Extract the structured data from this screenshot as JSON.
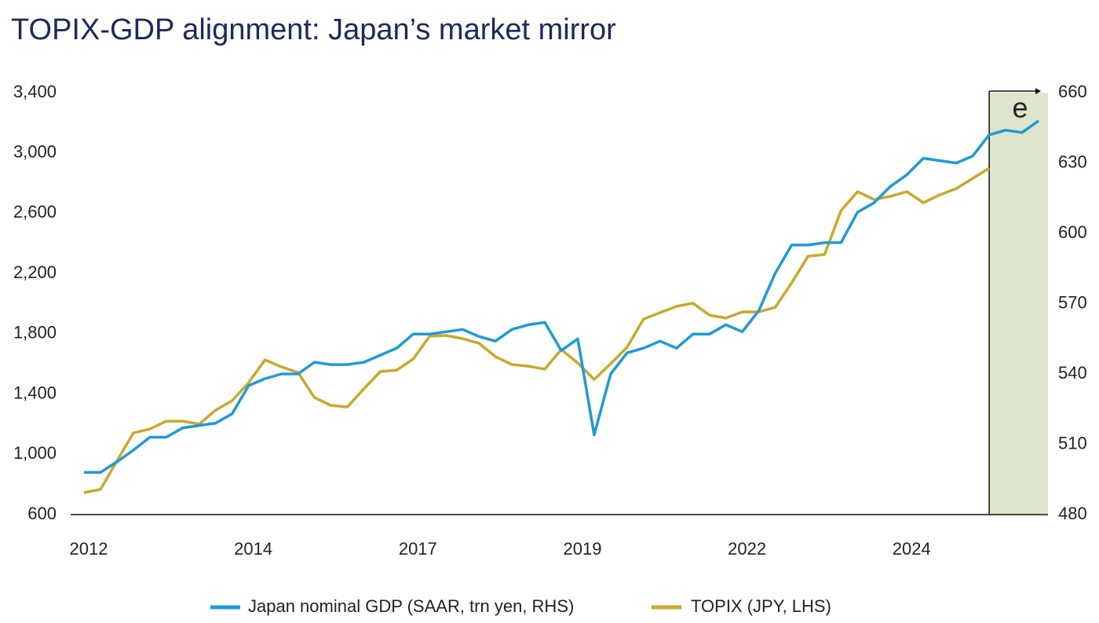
{
  "chart_data": {
    "type": "line",
    "title": "TOPIX-GDP alignment: Japan’s market mirror",
    "categories": [
      "2012",
      null,
      null,
      null,
      null,
      null,
      null,
      null,
      null,
      null,
      "2014",
      null,
      null,
      null,
      null,
      null,
      null,
      null,
      null,
      null,
      "2017",
      null,
      null,
      null,
      null,
      null,
      null,
      null,
      null,
      null,
      "2019",
      null,
      null,
      null,
      null,
      null,
      null,
      null,
      null,
      null,
      "2022",
      null,
      null,
      null,
      null,
      null,
      null,
      null,
      null,
      null,
      "2024",
      null,
      null,
      null,
      null,
      null,
      null,
      null,
      null
    ],
    "series": [
      {
        "name": "Japan nominal GDP (SAAR, trn yen, RHS)",
        "color": "#1f9ad6",
        "axis": "y2",
        "values": [
          498,
          498,
          502.5,
          507.5,
          513,
          513,
          517,
          518,
          519,
          523,
          535,
          538,
          540,
          540,
          545,
          544,
          544,
          545,
          548,
          551,
          557,
          557,
          558,
          559,
          556,
          554,
          559,
          561,
          562,
          550,
          555,
          514,
          540,
          549,
          551,
          554,
          551,
          557,
          557,
          561,
          558,
          567,
          583,
          595,
          595,
          596,
          596,
          609,
          613,
          620,
          625,
          632,
          631,
          630,
          633,
          642,
          644,
          643,
          648
        ]
      },
      {
        "name": "TOPIX (JPY, LHS)",
        "color": "#c9a92c",
        "values": [
          746,
          767,
          955,
          1142,
          1168,
          1220,
          1220,
          1200,
          1293,
          1356,
          1476,
          1627,
          1580,
          1544,
          1377,
          1325,
          1314,
          1434,
          1549,
          1559,
          1632,
          1784,
          1789,
          1768,
          1737,
          1648,
          1596,
          1585,
          1565,
          1695,
          1606,
          1497,
          1601,
          1711,
          1898,
          1940,
          1982,
          2003,
          1924,
          1904,
          1945,
          1945,
          1976,
          2138,
          2315,
          2326,
          2618,
          2743,
          2691,
          2712,
          2743,
          2670,
          2722,
          2764,
          2831,
          2899,
          null,
          null,
          null
        ]
      }
    ],
    "ylim": [
      600,
      3400
    ],
    "yticks": [
      600,
      {
        "value": 1000,
        "label": "1,000"
      },
      {
        "value": 1400,
        "label": "1,400"
      },
      {
        "value": 1800,
        "label": "1,800"
      },
      {
        "value": 2200,
        "label": "2,200"
      },
      {
        "value": 2600,
        "label": "2,600"
      },
      {
        "value": 3000,
        "label": "3,000"
      },
      {
        "value": 3400,
        "label": "3,400"
      }
    ],
    "y2lim": [
      480,
      660
    ],
    "y2ticks": [
      480,
      510,
      540,
      570,
      600,
      630,
      660
    ],
    "shade": {
      "start": 55,
      "label": "e",
      "color": "#dde6cc"
    }
  }
}
